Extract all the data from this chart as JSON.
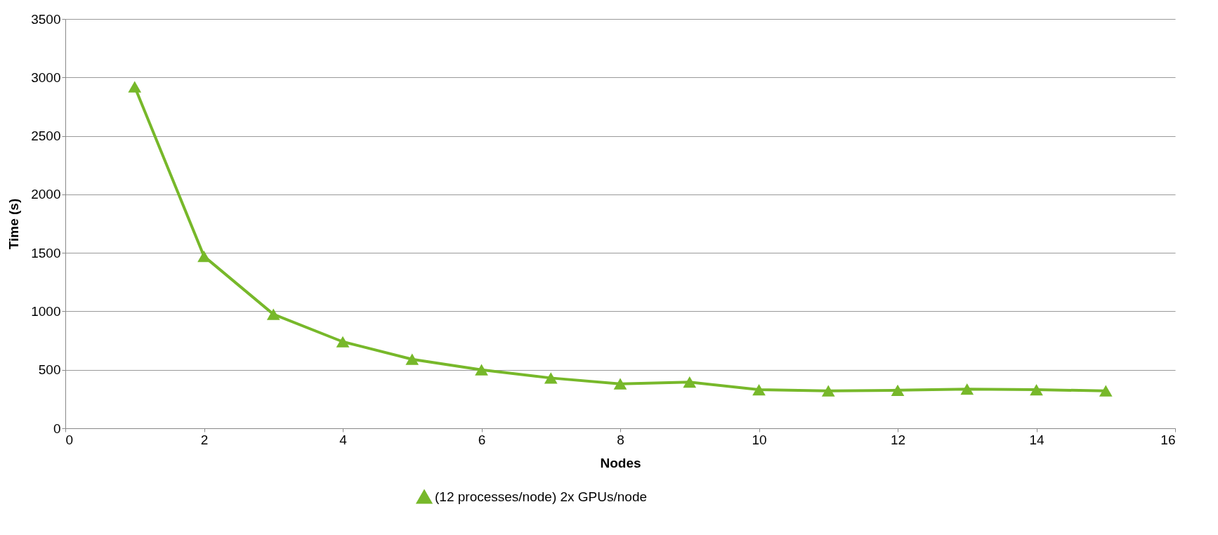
{
  "chart_data": {
    "type": "line",
    "xlabel": "Nodes",
    "ylabel": "Time (s)",
    "x": [
      1,
      2,
      3,
      4,
      5,
      6,
      7,
      8,
      9,
      10,
      11,
      12,
      13,
      14,
      15
    ],
    "series": [
      {
        "name": "(12 processes/node) 2x GPUs/node",
        "color": "#77b82a",
        "values": [
          2920,
          1470,
          975,
          740,
          590,
          500,
          430,
          380,
          395,
          330,
          320,
          325,
          335,
          330,
          320
        ]
      }
    ],
    "xlim": [
      0,
      16
    ],
    "xticks": [
      0,
      2,
      4,
      6,
      8,
      10,
      12,
      14,
      16
    ],
    "ylim": [
      0,
      3500
    ],
    "yticks": [
      0,
      500,
      1000,
      1500,
      2000,
      2500,
      3000,
      3500
    ],
    "grid": "y",
    "legend": "bottom",
    "marker": "triangle",
    "line_style": "solid"
  }
}
